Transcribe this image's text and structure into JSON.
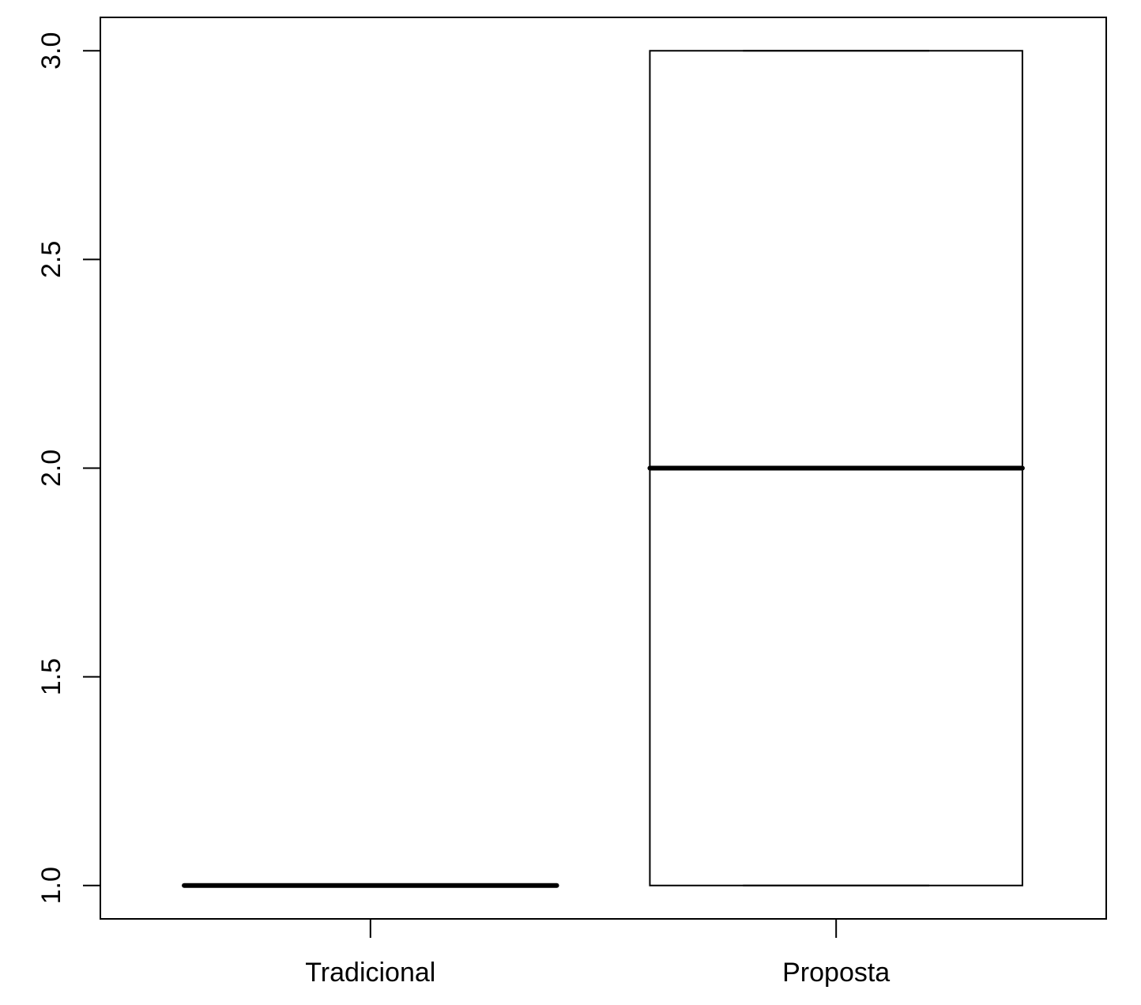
{
  "chart_data": {
    "type": "boxplot",
    "title": "",
    "xlabel": "",
    "ylabel": "",
    "categories": [
      "Tradicional",
      "Proposta"
    ],
    "boxes": [
      {
        "category": "Tradicional",
        "min": 1.0,
        "q1": 1.0,
        "median": 1.0,
        "q3": 1.0,
        "max": 1.0
      },
      {
        "category": "Proposta",
        "min": 1.0,
        "q1": 1.0,
        "median": 2.0,
        "q3": 3.0,
        "max": 3.0
      }
    ],
    "ylim": [
      0.92,
      3.08
    ],
    "yticks": [
      1.0,
      1.5,
      2.0,
      2.5,
      3.0
    ],
    "ytick_labels": [
      "1.0",
      "1.5",
      "2.0",
      "2.5",
      "3.0"
    ],
    "grid": false,
    "colors": {
      "line": "#000000",
      "background": "#ffffff"
    }
  }
}
